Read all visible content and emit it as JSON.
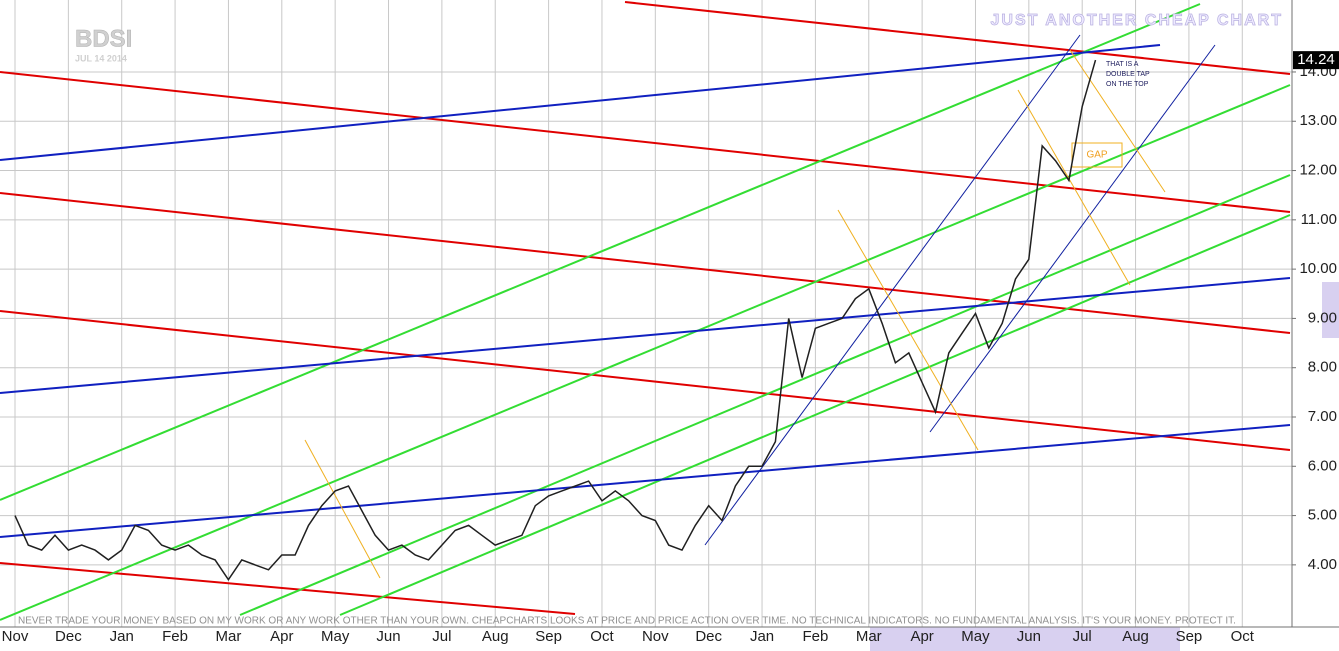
{
  "chart_data": {
    "type": "line",
    "symbol": "BDSI",
    "date": "JUL 14 2014",
    "title": "JUST ANOTHER CHEAP CHART",
    "annotations": [
      "THAT IS A",
      "DOUBLE TAP",
      "ON THE TOP",
      "GAP"
    ],
    "disclaimer": "NEVER TRADE YOUR MONEY BASED ON MY  WORK OR ANY WORK OTHER THAN YOUR  OWN. CHEAPCHARTS LOOKS AT PRICE AND  PRICE ACTION OVER TIME. NO TECHNICAL  INDICATORS. NO FUNDAMENTAL ANALYSIS. IT'S  YOUR MONEY. PROTECT IT.",
    "categories": [
      "Nov",
      null,
      null,
      null,
      "Dec",
      null,
      null,
      null,
      "Jan",
      null,
      null,
      null,
      "Feb",
      null,
      null,
      null,
      "Mar",
      null,
      null,
      null,
      "Apr",
      null,
      null,
      null,
      "May",
      null,
      null,
      null,
      "Jun",
      null,
      null,
      null,
      "Jul",
      null,
      null,
      null,
      "Aug",
      null,
      null,
      null,
      "Sep",
      null,
      null,
      null,
      "Oct",
      null,
      null,
      null,
      "Nov",
      null,
      null,
      null,
      "Dec",
      null,
      null,
      null,
      "Jan",
      null,
      null,
      null,
      "Feb",
      null,
      null,
      null,
      "Mar",
      null,
      null,
      null,
      "Apr",
      null,
      null,
      null,
      "May",
      null,
      null,
      null,
      "Jun",
      null,
      null,
      null,
      "Jul",
      null,
      null,
      null,
      "Aug",
      null,
      null,
      null,
      "Sep",
      null,
      null,
      null,
      "Oct",
      null,
      null,
      null
    ],
    "series": [
      {
        "name": "BDSI",
        "color": "#202020",
        "values": [
          5.0,
          4.4,
          4.3,
          4.6,
          4.3,
          4.4,
          4.3,
          4.1,
          4.3,
          4.8,
          4.7,
          4.4,
          4.3,
          4.4,
          4.2,
          4.1,
          3.7,
          4.1,
          4.0,
          3.9,
          4.2,
          4.2,
          4.8,
          5.2,
          5.5,
          5.6,
          5.1,
          4.6,
          4.3,
          4.4,
          4.2,
          4.1,
          4.4,
          4.7,
          4.8,
          4.6,
          4.4,
          4.5,
          4.6,
          5.2,
          5.4,
          5.5,
          5.6,
          5.7,
          5.3,
          5.5,
          5.3,
          5.0,
          4.9,
          4.4,
          4.3,
          4.8,
          5.2,
          4.9,
          5.6,
          6.0,
          6.0,
          6.5,
          9.0,
          7.8,
          8.8,
          8.9,
          9.0,
          9.4,
          9.6,
          8.9,
          8.1,
          8.3,
          7.7,
          7.1,
          8.3,
          8.7,
          9.1,
          8.4,
          8.9,
          9.8,
          10.2,
          12.5,
          12.2,
          11.8,
          13.3,
          14.24,
          null,
          null,
          null,
          null,
          null,
          null,
          null,
          null,
          null,
          null,
          null,
          null,
          null,
          null
        ]
      }
    ],
    "ylim": [
      2.78,
      15.46
    ],
    "yticks": [
      {
        "value": 4,
        "label": "4.00"
      },
      {
        "value": 5,
        "label": "5.00"
      },
      {
        "value": 6,
        "label": "6.00"
      },
      {
        "value": 7,
        "label": "7.00"
      },
      {
        "value": 8,
        "label": "8.00"
      },
      {
        "value": 9,
        "label": "9.00"
      },
      {
        "value": 10,
        "label": "10.00"
      },
      {
        "value": 11,
        "label": "11.00"
      },
      {
        "value": 12,
        "label": "12.00"
      },
      {
        "value": 13,
        "label": "13.00"
      },
      {
        "value": 14,
        "label": "14.00"
      }
    ],
    "grid": true
  }
}
